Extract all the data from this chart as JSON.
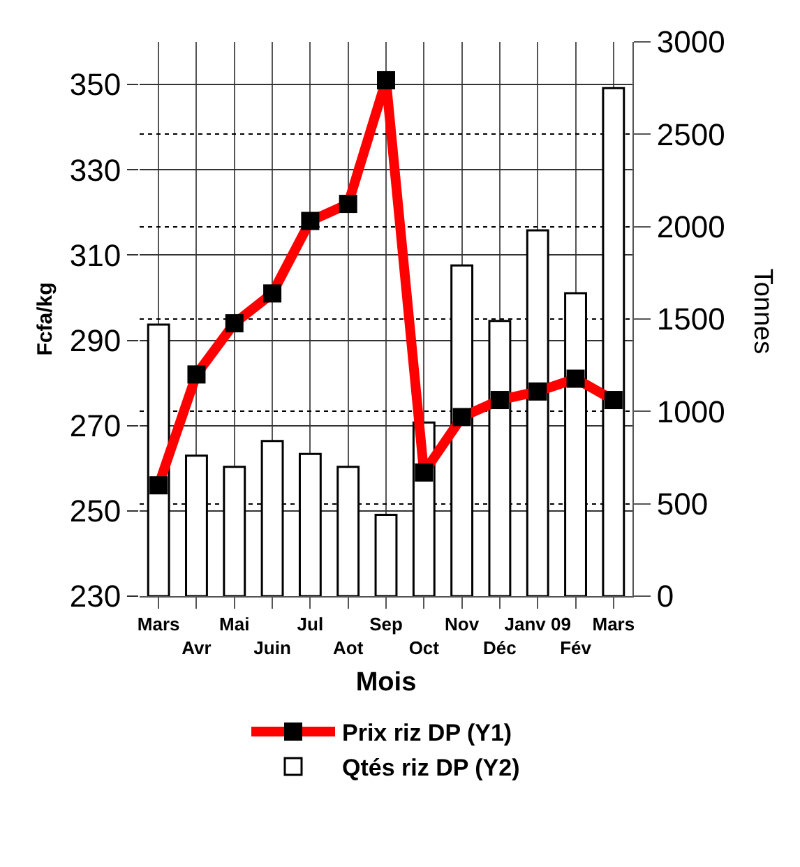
{
  "chart_data": {
    "type": "line",
    "xlabel": "Mois",
    "ylabel": "Fcfa/kg",
    "y2label": "Tonnes",
    "categories": [
      "Mars",
      "Avr",
      "Mai",
      "Juin",
      "Jul",
      "Aot",
      "Sep",
      "Oct",
      "Nov",
      "Déc",
      "Janv 09",
      "Fév",
      "Mars"
    ],
    "series": [
      {
        "name": "Prix riz DP (Y1)",
        "color": "#ff0000",
        "values": [
          256,
          282,
          294,
          301,
          318,
          322,
          351,
          259,
          272,
          276,
          278,
          281,
          276
        ]
      },
      {
        "name": "Qtés riz DP (Y2)",
        "type": "bar",
        "axis": "y2",
        "color": "#ffffff",
        "values": [
          1470,
          760,
          700,
          840,
          770,
          700,
          440,
          940,
          1790,
          1490,
          1980,
          1640,
          2750
        ]
      }
    ],
    "ylim": [
      230,
      360
    ],
    "yticks": [
      230,
      250,
      270,
      290,
      310,
      330,
      350
    ],
    "y2lim": [
      0,
      3000
    ],
    "y2ticks": [
      0,
      500,
      1000,
      1500,
      2000,
      2500,
      3000
    ],
    "grid": true,
    "legend": "bottom",
    "marker": "square",
    "line_style": "solid"
  }
}
